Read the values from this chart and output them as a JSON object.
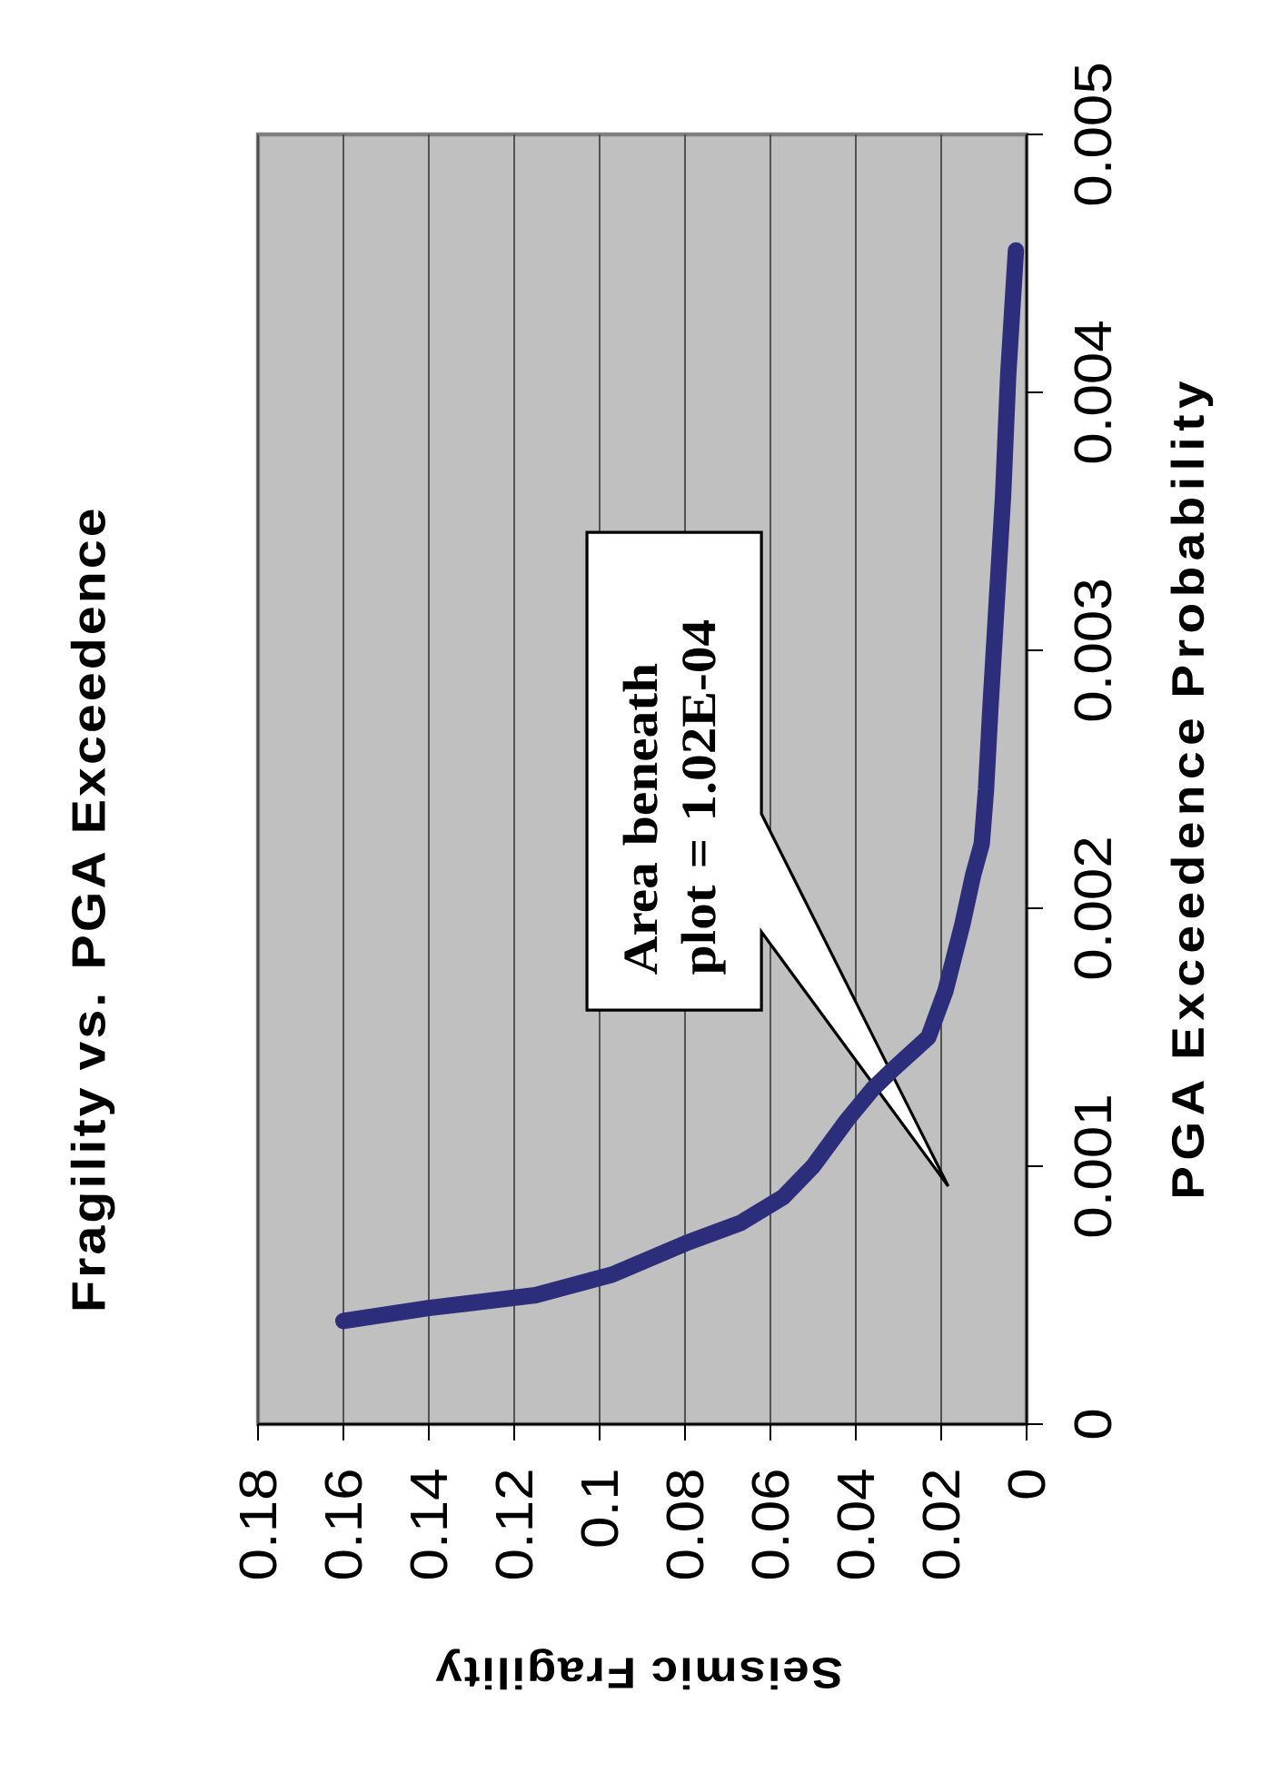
{
  "chart_data": {
    "type": "line",
    "title": "Fragility vs. PGA Exceedence",
    "xlabel": "Seismic Fragility",
    "ylabel": "PGA Exceedence Probability",
    "x": [
      0.16,
      0.14,
      0.115,
      0.097,
      0.08,
      0.067,
      0.057,
      0.05,
      0.042,
      0.036,
      0.031,
      0.023,
      0.019,
      0.015,
      0.0125,
      0.0105,
      0.0095,
      0.0085,
      0.0072,
      0.0055,
      0.0043,
      0.0025
    ],
    "values": [
      0.0004,
      0.00045,
      0.0005,
      0.00058,
      0.0007,
      0.00078,
      0.00088,
      0.001,
      0.00118,
      0.0013,
      0.00138,
      0.0015,
      0.00168,
      0.00194,
      0.00213,
      0.00225,
      0.00246,
      0.00277,
      0.00313,
      0.0036,
      0.00407,
      0.00455
    ],
    "color": "#2d2e7b",
    "xlim": [
      0.18,
      0
    ],
    "xticks": [
      0.18,
      0.16,
      0.14,
      0.12,
      0.1,
      0.08,
      0.06,
      0.04,
      0.02,
      0
    ],
    "ylim": [
      0,
      0.005
    ],
    "yticks": [
      0,
      0.001,
      0.002,
      0.003,
      0.004,
      0.005
    ],
    "grid": "x",
    "annotations": [
      "Area beneath plot = 1.02E-04"
    ]
  }
}
